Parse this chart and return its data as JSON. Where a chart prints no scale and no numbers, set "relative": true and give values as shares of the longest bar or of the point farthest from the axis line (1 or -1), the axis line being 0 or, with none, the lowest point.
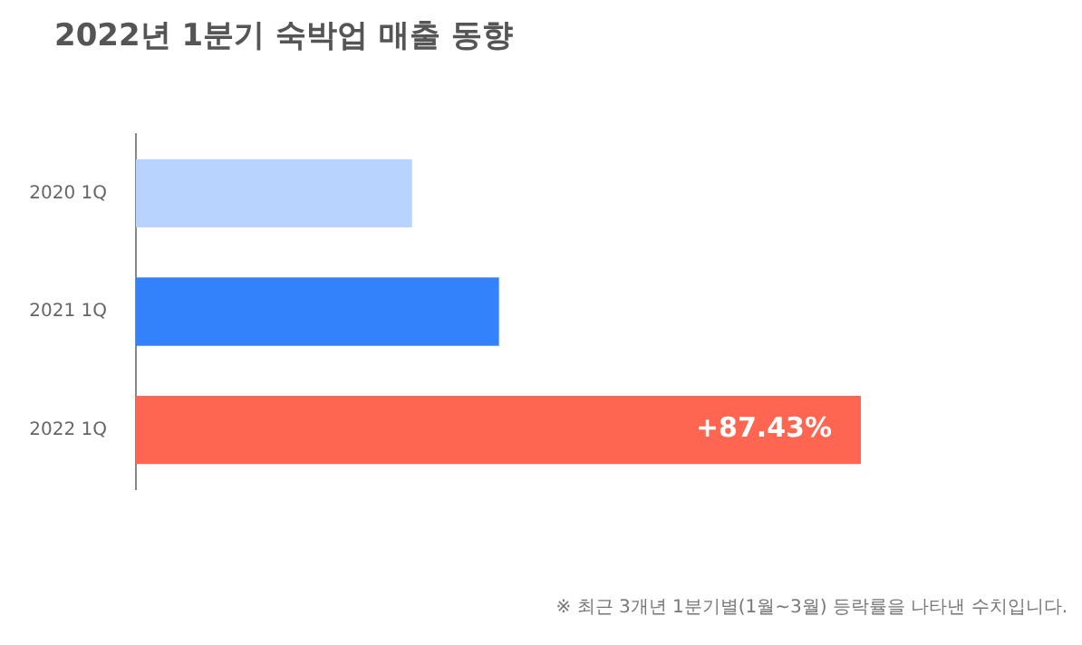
{
  "chart_data": {
    "type": "bar",
    "orientation": "horizontal",
    "relative": true,
    "title": "2022년 1분기 숙박업 매출 동향",
    "categories": [
      "2020 1Q",
      "2021 1Q",
      "2022 1Q"
    ],
    "values": [
      0.38,
      0.5,
      1
    ],
    "colors": [
      "#b7d3fe",
      "#3482fb",
      "#fe6651"
    ],
    "legend": false,
    "annotations": [
      "+87.43%",
      "※ 최근 3개년 1분기별(1월~3월) 등락률을 나타낸 수치입니다."
    ]
  }
}
